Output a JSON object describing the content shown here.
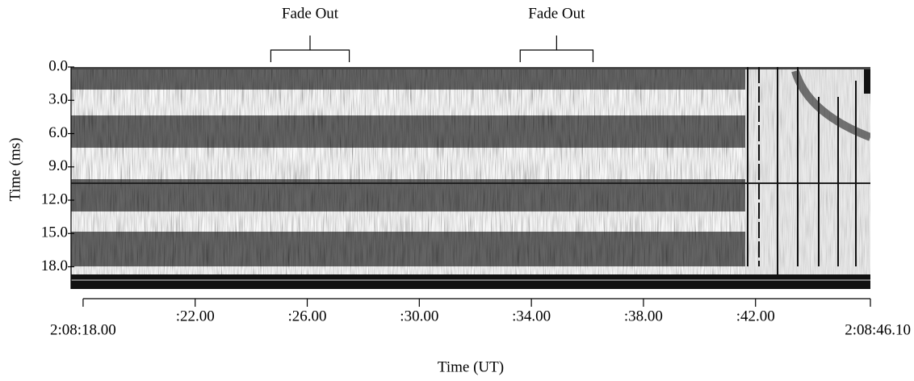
{
  "chart_data": {
    "type": "image",
    "xlabel": "Time (UT)",
    "ylabel": "Time (ms)",
    "xlim": [
      -0.43,
      28.1
    ],
    "ylim": [
      0,
      20
    ],
    "y_inverted": true,
    "xticks": [
      {
        "value": 0,
        "label": "2:08:18.00"
      },
      {
        "value": 4,
        "label": ":22.00"
      },
      {
        "value": 8,
        "label": ":26.00"
      },
      {
        "value": 12,
        "label": ":30.00"
      },
      {
        "value": 16,
        "label": ":34.00"
      },
      {
        "value": 20,
        "label": ":38.00"
      },
      {
        "value": 24,
        "label": ":42.00"
      },
      {
        "value": 28.1,
        "label": "2:08:46.10"
      }
    ],
    "yticks": [
      {
        "value": 0,
        "label": "0.0"
      },
      {
        "value": 3,
        "label": "3.0"
      },
      {
        "value": 6,
        "label": "6.0"
      },
      {
        "value": 9,
        "label": "9.0"
      },
      {
        "value": 12,
        "label": "12.0"
      },
      {
        "value": 15,
        "label": "15.0"
      },
      {
        "value": 18,
        "label": "18.0"
      }
    ],
    "annotations": [
      {
        "text": "Fade Out",
        "x": [
          6.7,
          9.5
        ]
      },
      {
        "text": "Fade Out",
        "x": [
          15.6,
          18.2
        ]
      }
    ]
  }
}
